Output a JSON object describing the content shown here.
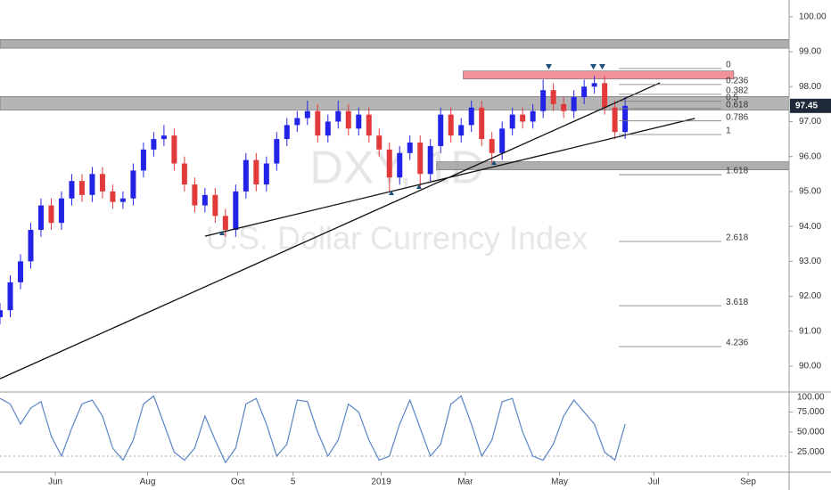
{
  "chart_data": {
    "type": "candlestick",
    "watermark": "DXY, 1D",
    "subtitle": "U.S. Dollar Currency Index",
    "up_color": "#2323e8",
    "down_color": "#e23a3a",
    "xlim": [
      0,
      385
    ],
    "xticks": [
      {
        "value": 27,
        "label": "Jun"
      },
      {
        "value": 72,
        "label": "Aug"
      },
      {
        "value": 116,
        "label": "Oct"
      },
      {
        "value": 143,
        "label": "5"
      },
      {
        "value": 186,
        "label": "2019"
      },
      {
        "value": 227,
        "label": "Mar"
      },
      {
        "value": 273,
        "label": "May"
      },
      {
        "value": 319,
        "label": "Jul"
      },
      {
        "value": 365,
        "label": "Sep"
      }
    ],
    "ylim": [
      89.26,
      100.48
    ],
    "yticks": [
      {
        "value": 100,
        "label": "100.00"
      },
      {
        "value": 99,
        "label": "99.00"
      },
      {
        "value": 98,
        "label": "98.00"
      },
      {
        "value": 97,
        "label": "97.00"
      },
      {
        "value": 96,
        "label": "96.00"
      },
      {
        "value": 95,
        "label": "95.00"
      },
      {
        "value": 94,
        "label": "94.00"
      },
      {
        "value": 93,
        "label": "93.00"
      },
      {
        "value": 92,
        "label": "92.00"
      },
      {
        "value": 91,
        "label": "91.00"
      },
      {
        "value": 90,
        "label": "90.00"
      }
    ],
    "last_price": 97.45,
    "x": [
      0,
      5,
      10,
      15,
      20,
      25,
      30,
      35,
      40,
      45,
      50,
      55,
      60,
      65,
      70,
      75,
      80,
      85,
      90,
      95,
      100,
      105,
      110,
      115,
      120,
      125,
      130,
      135,
      140,
      145,
      150,
      155,
      160,
      165,
      170,
      175,
      180,
      185,
      190,
      195,
      200,
      205,
      210,
      215,
      220,
      225,
      230,
      235,
      240,
      245,
      250,
      255,
      260,
      265,
      270,
      275,
      280,
      285,
      290,
      295,
      300,
      305
    ],
    "open": [
      91.4,
      91.6,
      92.4,
      93.0,
      93.9,
      94.6,
      94.1,
      94.8,
      95.3,
      94.9,
      95.5,
      95.0,
      94.7,
      94.8,
      95.6,
      96.2,
      96.5,
      96.6,
      95.8,
      95.2,
      94.6,
      94.9,
      94.3,
      93.9,
      95.0,
      95.9,
      95.2,
      95.8,
      96.5,
      96.9,
      97.1,
      97.3,
      96.6,
      97.0,
      97.3,
      96.8,
      97.2,
      96.6,
      96.2,
      95.4,
      96.1,
      96.4,
      95.5,
      96.3,
      97.2,
      96.6,
      96.9,
      97.4,
      96.5,
      96.1,
      96.8,
      97.2,
      97.0,
      97.3,
      97.9,
      97.5,
      97.3,
      97.7,
      98.0,
      98.1,
      97.4,
      96.7
    ],
    "high": [
      91.8,
      92.6,
      93.2,
      94.1,
      94.8,
      94.8,
      95.0,
      95.5,
      95.5,
      95.7,
      95.7,
      95.2,
      95.0,
      95.8,
      96.4,
      96.7,
      96.9,
      96.8,
      96.0,
      95.4,
      95.1,
      95.1,
      94.5,
      95.2,
      96.1,
      96.1,
      96.0,
      96.7,
      97.1,
      97.3,
      97.6,
      97.5,
      97.2,
      97.6,
      97.5,
      97.4,
      97.4,
      96.8,
      96.4,
      96.3,
      96.6,
      96.6,
      96.5,
      97.4,
      97.4,
      97.1,
      97.6,
      97.6,
      96.7,
      97.0,
      97.4,
      97.4,
      97.5,
      98.2,
      98.1,
      97.7,
      97.9,
      98.2,
      98.3,
      98.3,
      97.6,
      97.7
    ],
    "low": [
      91.2,
      91.4,
      92.2,
      92.8,
      93.7,
      93.9,
      93.9,
      94.6,
      94.7,
      94.7,
      94.8,
      94.5,
      94.5,
      94.6,
      95.4,
      96.0,
      96.3,
      95.6,
      95.0,
      94.4,
      94.4,
      94.1,
      93.7,
      93.7,
      94.8,
      95.0,
      95.0,
      95.6,
      96.3,
      96.7,
      96.9,
      96.4,
      96.4,
      96.8,
      96.6,
      96.6,
      96.4,
      96.0,
      95.0,
      95.2,
      95.9,
      95.1,
      95.3,
      96.1,
      96.4,
      96.4,
      96.7,
      96.3,
      95.8,
      95.9,
      96.6,
      96.8,
      96.8,
      97.1,
      97.3,
      97.1,
      97.1,
      97.5,
      97.8,
      97.2,
      96.5,
      96.5
    ],
    "close": [
      91.6,
      92.4,
      93.0,
      93.9,
      94.6,
      94.1,
      94.8,
      95.3,
      94.9,
      95.5,
      95.0,
      94.7,
      94.8,
      95.6,
      96.2,
      96.5,
      96.6,
      95.8,
      95.2,
      94.6,
      94.9,
      94.3,
      93.9,
      95.0,
      95.9,
      95.2,
      95.8,
      96.5,
      96.9,
      97.1,
      97.3,
      96.6,
      97.0,
      97.3,
      96.8,
      97.2,
      96.6,
      96.2,
      95.4,
      96.1,
      96.4,
      95.5,
      96.3,
      97.2,
      96.6,
      96.9,
      97.4,
      96.5,
      96.1,
      96.8,
      97.2,
      97.0,
      97.3,
      97.9,
      97.5,
      97.3,
      97.7,
      98.0,
      98.1,
      97.4,
      96.7,
      97.45
    ],
    "zones": [
      {
        "low": 99.1,
        "high": 99.35,
        "from": 0,
        "to": 385,
        "color": "#a0a0a0"
      },
      {
        "low": 97.33,
        "high": 97.72,
        "from": 0,
        "to": 385,
        "color": "#a8a8a8"
      },
      {
        "low": 98.22,
        "high": 98.45,
        "from": 226,
        "to": 358,
        "color": "#ef7f86"
      },
      {
        "low": 95.62,
        "high": 95.85,
        "from": 213,
        "to": 385,
        "color": "#a0a0a0"
      }
    ],
    "trendlines": [
      {
        "x": [
          0,
          322
        ],
        "y": [
          89.64,
          98.11
        ]
      },
      {
        "x": [
          100,
          339
        ],
        "y": [
          93.72,
          97.09
        ]
      }
    ],
    "fib_from": 302,
    "fib_to": 352,
    "fib": [
      {
        "label": "0",
        "price": 98.52
      },
      {
        "label": "0.236",
        "price": 98.06
      },
      {
        "label": "0.382",
        "price": 97.78
      },
      {
        "label": "0.5",
        "price": 97.58
      },
      {
        "label": "0.618",
        "price": 97.37
      },
      {
        "label": "0.786",
        "price": 97.02
      },
      {
        "label": "1",
        "price": 96.63
      },
      {
        "label": "1.618",
        "price": 95.48
      },
      {
        "label": "2.618",
        "price": 93.57
      },
      {
        "label": "3.618",
        "price": 91.73
      },
      {
        "label": "4.236",
        "price": 90.56
      }
    ],
    "oscillator": {
      "color": "#5b84c4",
      "ylim": [
        0,
        100
      ],
      "yticks": [
        {
          "value": 100,
          "label": "100.00"
        },
        {
          "value": 75,
          "label": "75.000"
        },
        {
          "value": 50,
          "label": "50.000"
        },
        {
          "value": 25,
          "label": "25.000"
        }
      ],
      "levels": [
        20
      ],
      "values": [
        92,
        85,
        60,
        80,
        88,
        45,
        20,
        55,
        85,
        90,
        70,
        30,
        15,
        40,
        85,
        95,
        60,
        25,
        15,
        30,
        70,
        40,
        12,
        30,
        85,
        92,
        60,
        20,
        35,
        90,
        88,
        50,
        20,
        40,
        85,
        75,
        40,
        15,
        20,
        60,
        90,
        55,
        20,
        35,
        85,
        95,
        60,
        20,
        40,
        88,
        92,
        50,
        20,
        15,
        35,
        70,
        90,
        75,
        60,
        25,
        15,
        60
      ]
    }
  }
}
